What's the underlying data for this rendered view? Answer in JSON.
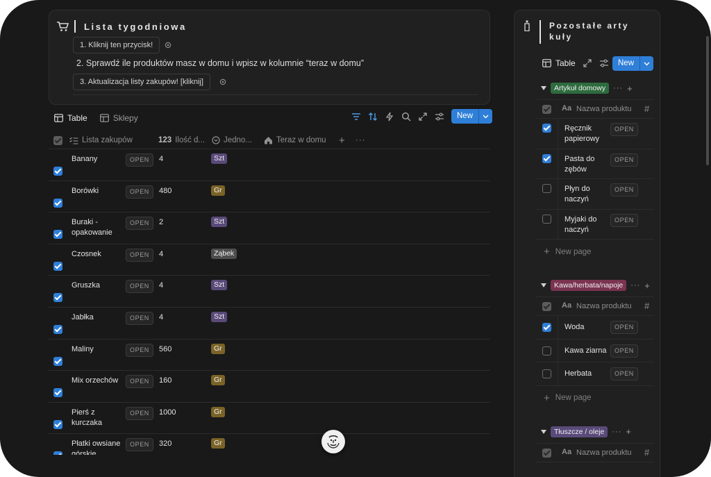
{
  "header": {
    "title": "Lista tygodniowa",
    "step1": "1. Kliknij ten przycisk!",
    "step2": "2.  Sprawdź ile produktów masz w domu i wpisz w kolumnie “teraz w domu”",
    "step3": "3. Aktualizacja listy zakupów! [kliknij]"
  },
  "views": {
    "tab1": "Table",
    "tab2": "Sklepy",
    "new_label": "New"
  },
  "table": {
    "columns": [
      "Lista zakupów",
      "Ilość d...",
      "Jedno...",
      "Teraz w domu"
    ],
    "qty_icon_text": "123",
    "open_label": "OPEN",
    "rows": [
      {
        "name": "Banany",
        "qty": "4",
        "unit": "Szt",
        "unit_color": "#5a4a7a"
      },
      {
        "name": "Borówki",
        "qty": "480",
        "unit": "Gr",
        "unit_color": "#7a6327"
      },
      {
        "name": "Buraki - opakowanie",
        "qty": "2",
        "unit": "Szt",
        "unit_color": "#5a4a7a"
      },
      {
        "name": "Czosnek",
        "qty": "4",
        "unit": "Ząbek",
        "unit_color": "#4e4e4e"
      },
      {
        "name": "Gruszka",
        "qty": "4",
        "unit": "Szt",
        "unit_color": "#5a4a7a"
      },
      {
        "name": "Jabłka",
        "qty": "4",
        "unit": "Szt",
        "unit_color": "#5a4a7a"
      },
      {
        "name": "Maliny",
        "qty": "560",
        "unit": "Gr",
        "unit_color": "#7a6327"
      },
      {
        "name": "Mix orzechów",
        "qty": "160",
        "unit": "Gr",
        "unit_color": "#7a6327"
      },
      {
        "name": "Pierś z kurczaka",
        "qty": "1000",
        "unit": "Gr",
        "unit_color": "#7a6327"
      },
      {
        "name": "Płatki owsiane górskie",
        "qty": "320",
        "unit": "Gr",
        "unit_color": "#7a6327"
      }
    ]
  },
  "panel": {
    "title": "Pozostałe artykuły",
    "title_line1": "Pozostałe arty",
    "title_line2": "kuły",
    "tab": "Table",
    "new_label": "New",
    "col_name": "Nazwa produktu",
    "col_hash": "#",
    "aa": "Aa",
    "new_page": "New page",
    "groups": [
      {
        "label": "Artykuł domowy",
        "color": "#2e6b3e",
        "items": [
          {
            "name": "Ręcznik papierowy",
            "checked": true
          },
          {
            "name": "Pasta do zębów",
            "checked": true
          },
          {
            "name": "Płyn do naczyń",
            "checked": false
          },
          {
            "name": "Myjaki do naczyń",
            "checked": false
          }
        ]
      },
      {
        "label": "Kawa/herbata/napoje",
        "color": "#7a3350",
        "items": [
          {
            "name": "Woda",
            "checked": true
          },
          {
            "name": "Kawa ziarna",
            "checked": false
          },
          {
            "name": "Herbata",
            "checked": false
          }
        ]
      },
      {
        "label": "Tłuszcze / oleje",
        "color": "#5a4a7a",
        "items": []
      }
    ]
  },
  "colors": {
    "accent": "#2f7fd8",
    "background": "#191919",
    "card": "#202020"
  }
}
